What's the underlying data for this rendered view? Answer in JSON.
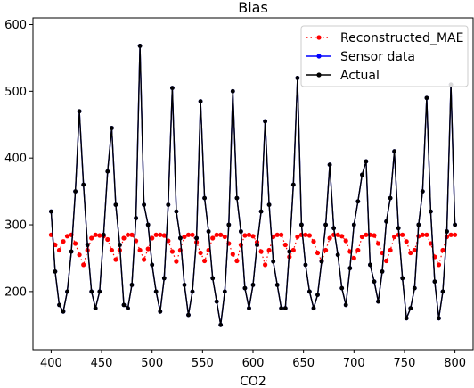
{
  "chart_data": {
    "type": "line",
    "title": "Bias",
    "xlabel": "CO2",
    "ylabel": "",
    "xlim": [
      382,
      818
    ],
    "ylim": [
      113,
      610
    ],
    "x_ticks": [
      400,
      450,
      500,
      550,
      600,
      650,
      700,
      750,
      800
    ],
    "y_ticks": [
      200,
      300,
      400,
      500,
      600
    ],
    "grid": false,
    "legend_position": "top-right",
    "series": [
      {
        "name": "Reconstructed_MAE",
        "color": "#ff0000",
        "style": "dotted-marker",
        "x": [
          400,
          404,
          408,
          412,
          416,
          420,
          424,
          428,
          432,
          436,
          440,
          444,
          448,
          452,
          456,
          460,
          464,
          468,
          472,
          476,
          480,
          484,
          488,
          492,
          496,
          500,
          504,
          508,
          512,
          516,
          520,
          524,
          528,
          532,
          536,
          540,
          544,
          548,
          552,
          556,
          560,
          564,
          568,
          572,
          576,
          580,
          584,
          588,
          592,
          596,
          600,
          604,
          608,
          612,
          616,
          620,
          624,
          628,
          632,
          636,
          640,
          644,
          648,
          652,
          656,
          660,
          664,
          668,
          672,
          676,
          680,
          684,
          688,
          692,
          696,
          700,
          704,
          708,
          712,
          716,
          720,
          724,
          728,
          732,
          736,
          740,
          744,
          748,
          752,
          756,
          760,
          764,
          768,
          772,
          776,
          780,
          784,
          788,
          792,
          796,
          800
        ],
        "values": [
          285,
          270,
          262,
          275,
          283,
          285,
          272,
          255,
          240,
          262,
          280,
          285,
          284,
          283,
          278,
          262,
          248,
          262,
          280,
          285,
          285,
          276,
          262,
          248,
          264,
          280,
          285,
          285,
          284,
          276,
          260,
          245,
          262,
          282,
          285,
          285,
          274,
          258,
          246,
          262,
          280,
          285,
          285,
          282,
          272,
          256,
          246,
          270,
          284,
          285,
          283,
          274,
          260,
          240,
          262,
          282,
          285,
          285,
          270,
          252,
          262,
          282,
          285,
          285,
          284,
          275,
          258,
          246,
          262,
          280,
          285,
          285,
          283,
          276,
          260,
          250,
          262,
          282,
          285,
          285,
          284,
          272,
          258,
          246,
          262,
          282,
          285,
          285,
          275,
          258,
          262,
          283,
          285,
          285,
          272,
          252,
          240,
          262,
          282,
          285,
          285
        ]
      },
      {
        "name": "Sensor data",
        "color": "#0000ff",
        "style": "solid-marker",
        "x": [
          400,
          404,
          408,
          412,
          416,
          420,
          424,
          428,
          432,
          436,
          440,
          444,
          448,
          452,
          456,
          460,
          464,
          468,
          472,
          476,
          480,
          484,
          488,
          492,
          496,
          500,
          504,
          508,
          512,
          516,
          520,
          524,
          528,
          532,
          536,
          540,
          544,
          548,
          552,
          556,
          560,
          564,
          568,
          572,
          576,
          580,
          584,
          588,
          592,
          596,
          600,
          604,
          608,
          612,
          616,
          620,
          624,
          628,
          632,
          636,
          640,
          644,
          648,
          652,
          656,
          660,
          664,
          668,
          672,
          676,
          680,
          684,
          688,
          692,
          696,
          700,
          704,
          708,
          712,
          716,
          720,
          724,
          728,
          732,
          736,
          740,
          744,
          748,
          752,
          756,
          760,
          764,
          768,
          772,
          776,
          780,
          784,
          788,
          792,
          796,
          800
        ],
        "values": [
          320,
          230,
          180,
          170,
          200,
          260,
          350,
          470,
          360,
          270,
          200,
          175,
          200,
          285,
          380,
          445,
          330,
          270,
          180,
          175,
          210,
          310,
          568,
          330,
          300,
          240,
          200,
          170,
          220,
          330,
          505,
          320,
          280,
          210,
          165,
          200,
          280,
          485,
          340,
          290,
          220,
          185,
          150,
          200,
          300,
          500,
          340,
          290,
          205,
          175,
          210,
          270,
          320,
          455,
          330,
          245,
          210,
          175,
          175,
          260,
          360,
          520,
          300,
          240,
          200,
          175,
          195,
          245,
          300,
          390,
          295,
          255,
          205,
          180,
          235,
          300,
          335,
          375,
          395,
          240,
          215,
          185,
          230,
          305,
          340,
          410,
          295,
          220,
          160,
          175,
          205,
          300,
          350,
          490,
          320,
          215,
          160,
          200,
          290,
          510,
          300
        ]
      },
      {
        "name": "Actual",
        "color": "#000000",
        "style": "solid-marker",
        "x": [
          400,
          404,
          408,
          412,
          416,
          420,
          424,
          428,
          432,
          436,
          440,
          444,
          448,
          452,
          456,
          460,
          464,
          468,
          472,
          476,
          480,
          484,
          488,
          492,
          496,
          500,
          504,
          508,
          512,
          516,
          520,
          524,
          528,
          532,
          536,
          540,
          544,
          548,
          552,
          556,
          560,
          564,
          568,
          572,
          576,
          580,
          584,
          588,
          592,
          596,
          600,
          604,
          608,
          612,
          616,
          620,
          624,
          628,
          632,
          636,
          640,
          644,
          648,
          652,
          656,
          660,
          664,
          668,
          672,
          676,
          680,
          684,
          688,
          692,
          696,
          700,
          704,
          708,
          712,
          716,
          720,
          724,
          728,
          732,
          736,
          740,
          744,
          748,
          752,
          756,
          760,
          764,
          768,
          772,
          776,
          780,
          784,
          788,
          792,
          796,
          800
        ],
        "values": [
          320,
          230,
          180,
          170,
          200,
          260,
          350,
          470,
          360,
          270,
          200,
          175,
          200,
          285,
          380,
          445,
          330,
          270,
          180,
          175,
          210,
          310,
          568,
          330,
          300,
          240,
          200,
          170,
          220,
          330,
          505,
          320,
          280,
          210,
          165,
          200,
          280,
          485,
          340,
          290,
          220,
          185,
          150,
          200,
          300,
          500,
          340,
          290,
          205,
          175,
          210,
          270,
          320,
          455,
          330,
          245,
          210,
          175,
          175,
          260,
          360,
          520,
          300,
          240,
          200,
          175,
          195,
          245,
          300,
          390,
          295,
          255,
          205,
          180,
          235,
          300,
          335,
          375,
          395,
          240,
          215,
          185,
          230,
          305,
          340,
          410,
          295,
          220,
          160,
          175,
          205,
          300,
          350,
          490,
          320,
          215,
          160,
          200,
          290,
          510,
          300
        ]
      }
    ]
  }
}
